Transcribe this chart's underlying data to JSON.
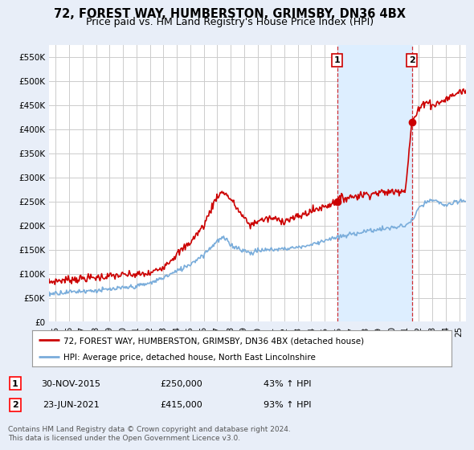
{
  "title": "72, FOREST WAY, HUMBERSTON, GRIMSBY, DN36 4BX",
  "subtitle": "Price paid vs. HM Land Registry's House Price Index (HPI)",
  "title_fontsize": 10.5,
  "subtitle_fontsize": 9,
  "ylabel_ticks": [
    "£0",
    "£50K",
    "£100K",
    "£150K",
    "£200K",
    "£250K",
    "£300K",
    "£350K",
    "£400K",
    "£450K",
    "£500K",
    "£550K"
  ],
  "ytick_values": [
    0,
    50000,
    100000,
    150000,
    200000,
    250000,
    300000,
    350000,
    400000,
    450000,
    500000,
    550000
  ],
  "ylim": [
    0,
    575000
  ],
  "xlim_start": 1994.5,
  "xlim_end": 2025.5,
  "sale1_date": "30-NOV-2015",
  "sale1_price": 250000,
  "sale1_pct": "43%",
  "sale1_year": 2015.92,
  "sale2_date": "23-JUN-2021",
  "sale2_price": 415000,
  "sale2_pct": "93%",
  "sale2_year": 2021.48,
  "red_line_color": "#cc0000",
  "blue_line_color": "#7aaddb",
  "shade_color": "#ddeeff",
  "legend_line1": "72, FOREST WAY, HUMBERSTON, GRIMSBY, DN36 4BX (detached house)",
  "legend_line2": "HPI: Average price, detached house, North East Lincolnshire",
  "footer_line1": "Contains HM Land Registry data © Crown copyright and database right 2024.",
  "footer_line2": "This data is licensed under the Open Government Licence v3.0.",
  "background_color": "#e8eef8",
  "plot_bg_color": "#ffffff",
  "grid_color": "#cccccc",
  "xtick_years": [
    1995,
    1996,
    1997,
    1998,
    1999,
    2000,
    2001,
    2002,
    2003,
    2004,
    2005,
    2006,
    2007,
    2008,
    2009,
    2010,
    2011,
    2012,
    2013,
    2014,
    2015,
    2016,
    2017,
    2018,
    2019,
    2020,
    2021,
    2022,
    2023,
    2024,
    2025
  ]
}
